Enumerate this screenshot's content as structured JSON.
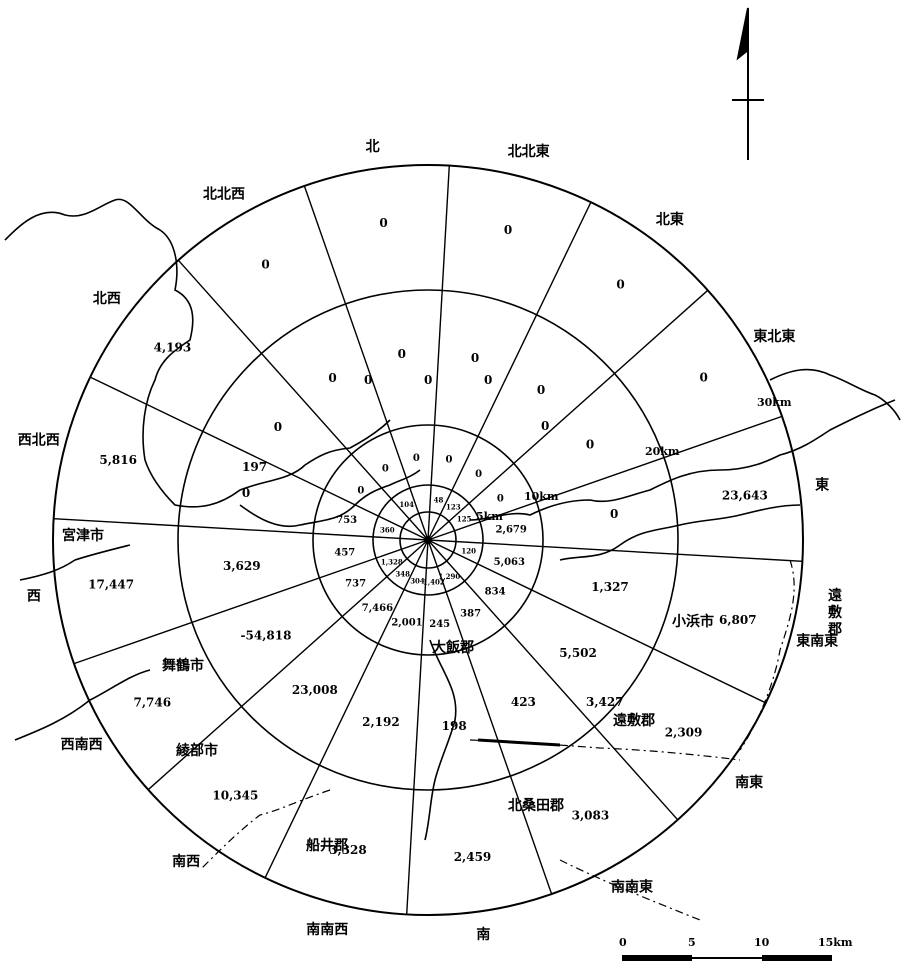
{
  "directions": [
    "北",
    "北北東",
    "北東",
    "東北東",
    "東",
    "東南東",
    "南東",
    "南南東",
    "南",
    "南南西",
    "南西",
    "西南西",
    "西",
    "西北西",
    "北西",
    "北北西"
  ],
  "ring_labels": [
    "5km",
    "10km",
    "20km",
    "30km"
  ],
  "sector_values": {
    "ring_10_20": [
      "0",
      "0",
      "0",
      "0",
      "0",
      "1,327",
      "5,502",
      "423",
      "198",
      "2,192",
      "23,008",
      "-54,818",
      "3,629",
      "0",
      "0",
      "0"
    ],
    "ring_20_30": [
      "0",
      "0",
      "0",
      "0",
      "23,643",
      "6,807",
      "2,309",
      "3,083",
      "2,459",
      "3,328",
      "10,345",
      "7,746",
      "17,447",
      "5,816",
      "4,193",
      "0"
    ],
    "ring_5_10": [
      "0",
      "0",
      "0",
      "0",
      "2,679",
      "5,063",
      "834",
      "387",
      "245",
      "2,001",
      "7,466",
      "737",
      "457",
      "753",
      "0",
      "0"
    ]
  },
  "mid_values": {
    "north_mid": "0",
    "nnw_mid": "0",
    "nne_mid": "0",
    "ene_mid": "0",
    "wnw_mid": "197",
    "ese_mid": "3,427"
  },
  "inner_small_labels": [
    "48",
    "123",
    "125",
    "120",
    "1,290",
    "1,402",
    "304",
    "348",
    "1,328",
    "360",
    "104"
  ],
  "place_names": {
    "miyazu": "宮津市",
    "maizuru": "舞鶴市",
    "ayabe": "綾部市",
    "funai": "船井郡",
    "kitakuwada": "北桑田郡",
    "onyu": "遠敷郡",
    "onyu_east": "遠\n敷\n郡",
    "obama": "小浜市",
    "ohi": "大飯郡"
  },
  "scale_bar": {
    "ticks": [
      "0",
      "5",
      "10",
      "15km"
    ]
  }
}
